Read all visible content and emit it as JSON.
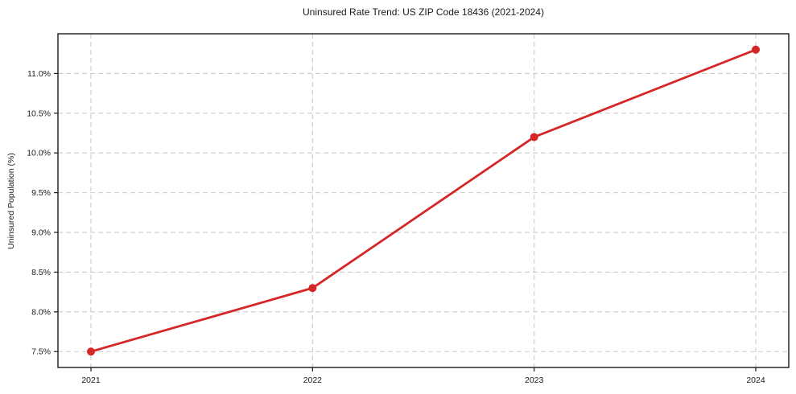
{
  "chart_data": {
    "type": "line",
    "title": "Uninsured Rate Trend: US ZIP Code 18436 (2021-2024)",
    "xlabel": "",
    "ylabel": "Uninsured Population (%)",
    "categories": [
      "2021",
      "2022",
      "2023",
      "2024"
    ],
    "series": [
      {
        "name": "Uninsured Rate",
        "values": [
          7.5,
          8.3,
          10.2,
          11.3
        ]
      }
    ],
    "y_ticks": [
      7.5,
      8.0,
      8.5,
      9.0,
      9.5,
      10.0,
      10.5,
      11.0
    ],
    "y_tick_labels": [
      "7.5%",
      "8.0%",
      "8.5%",
      "9.0%",
      "9.5%",
      "10.0%",
      "10.5%",
      "11.0%"
    ],
    "ylim": [
      7.3,
      11.5
    ],
    "grid": true,
    "grid_style": "dashed",
    "legend": "none",
    "colors": {
      "line": "#d62728",
      "marker": "#d62728",
      "grid": "#cccccc",
      "spine": "#1a1a1a",
      "text": "#1a1a1a",
      "background": "#ffffff"
    }
  }
}
